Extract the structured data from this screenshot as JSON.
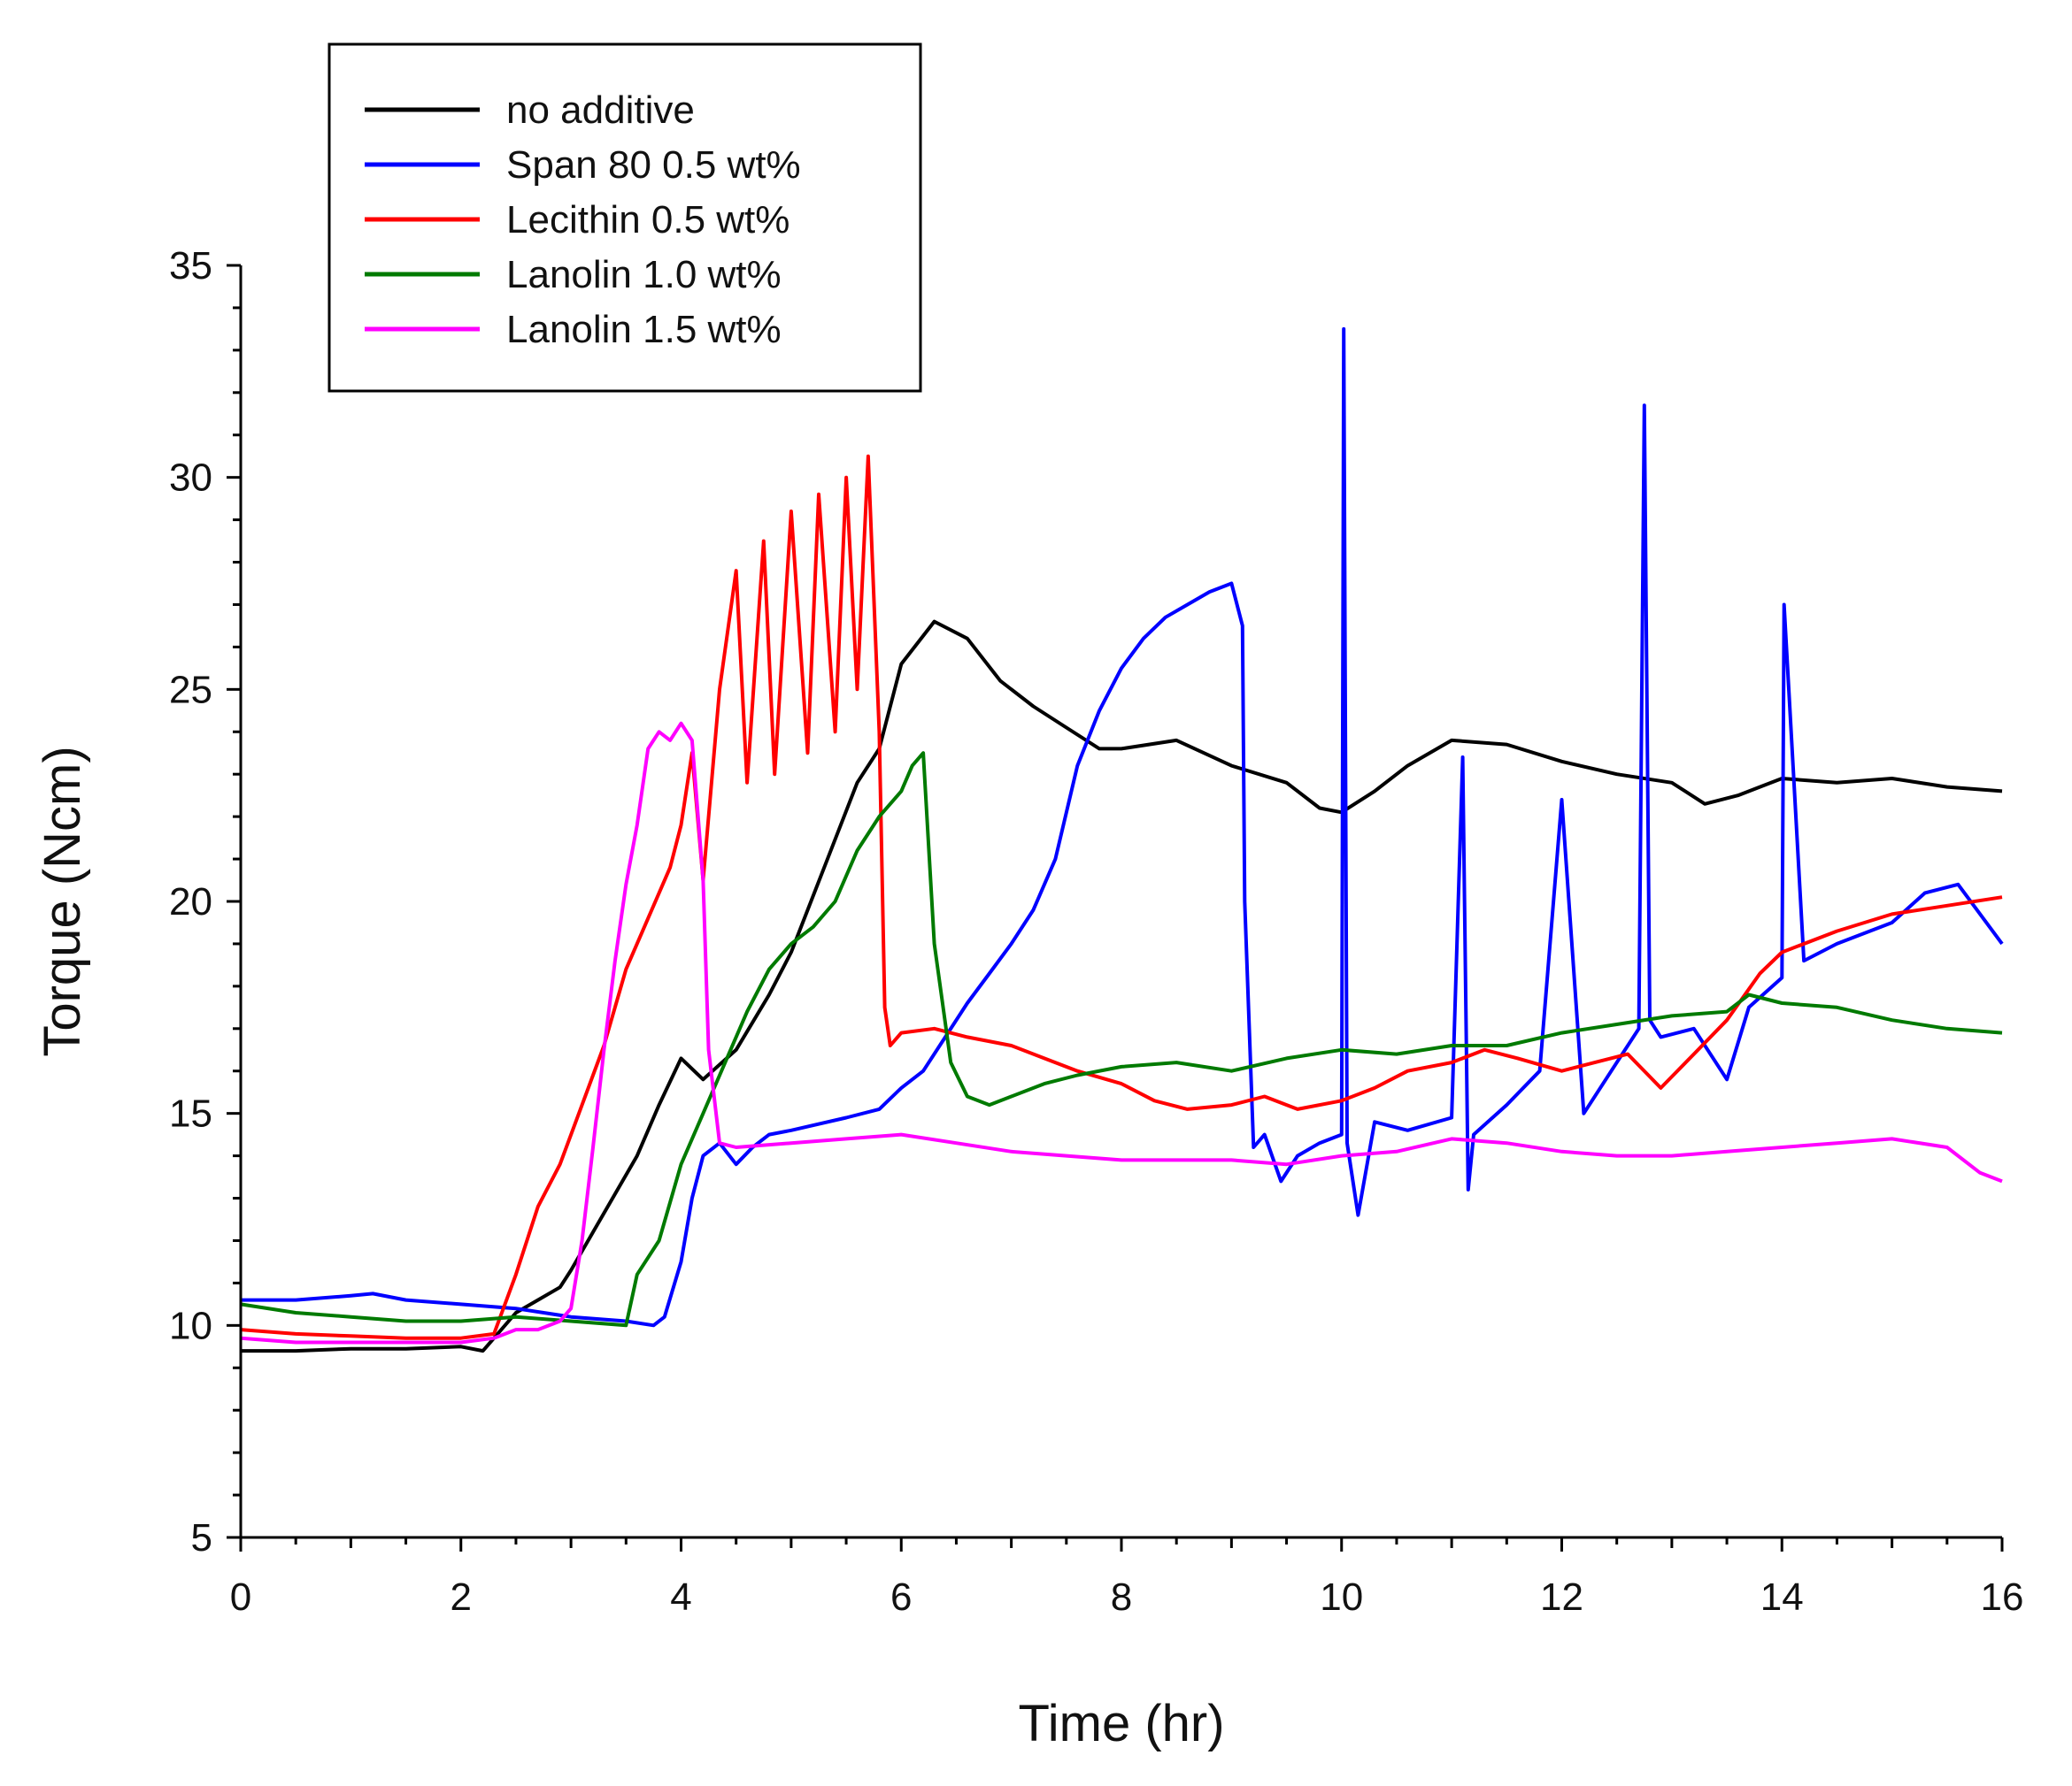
{
  "chart_data": {
    "type": "line",
    "title": "",
    "xlabel": "Time (hr)",
    "ylabel": "Torque (Ncm)",
    "xlim": [
      0,
      16
    ],
    "ylim": [
      5,
      35
    ],
    "x_ticks": [
      0,
      2,
      4,
      6,
      8,
      10,
      12,
      14,
      16
    ],
    "y_ticks": [
      5,
      10,
      15,
      20,
      25,
      30,
      35
    ],
    "x_tick_labels": [
      "0",
      "2",
      "4",
      "6",
      "8",
      "10",
      "12",
      "14",
      "16"
    ],
    "y_tick_labels": [
      "5",
      "10",
      "15",
      "20",
      "25",
      "30",
      "35"
    ],
    "grid": false,
    "legend_position": "top-left",
    "series": [
      {
        "name": "no additive",
        "color": "#000000",
        "x": [
          0,
          0.5,
          1,
          1.5,
          2,
          2.2,
          2.3,
          2.5,
          2.7,
          2.9,
          3.0,
          3.2,
          3.4,
          3.6,
          3.8,
          4.0,
          4.2,
          4.5,
          4.8,
          5.0,
          5.3,
          5.6,
          5.8,
          6.0,
          6.3,
          6.6,
          6.9,
          7.2,
          7.5,
          7.8,
          8.0,
          8.5,
          9.0,
          9.5,
          9.8,
          10.0,
          10.3,
          10.6,
          11.0,
          11.5,
          12.0,
          12.5,
          13.0,
          13.3,
          13.6,
          14.0,
          14.5,
          15.0,
          15.5,
          16.0
        ],
        "y": [
          9.4,
          9.4,
          9.45,
          9.45,
          9.5,
          9.4,
          9.7,
          10.3,
          10.6,
          10.9,
          11.3,
          12.2,
          13.1,
          14.0,
          15.2,
          16.3,
          15.8,
          16.5,
          17.8,
          18.8,
          20.8,
          22.8,
          23.6,
          25.6,
          26.6,
          26.2,
          25.2,
          24.6,
          24.1,
          23.6,
          23.6,
          23.8,
          23.2,
          22.8,
          22.2,
          22.1,
          22.6,
          23.2,
          23.8,
          23.7,
          23.3,
          23.0,
          22.8,
          22.3,
          22.5,
          22.9,
          22.8,
          22.9,
          22.7,
          22.6
        ]
      },
      {
        "name": "Span 80 0.5 wt%",
        "color": "#0000ff",
        "x": [
          0,
          0.5,
          1,
          1.2,
          1.5,
          2,
          2.5,
          3,
          3.5,
          3.75,
          3.85,
          4.0,
          4.1,
          4.2,
          4.35,
          4.5,
          4.65,
          4.8,
          5.0,
          5.5,
          5.8,
          6.0,
          6.2,
          6.4,
          6.6,
          6.8,
          7.0,
          7.2,
          7.4,
          7.6,
          7.8,
          8.0,
          8.2,
          8.4,
          8.6,
          8.8,
          9.0,
          9.1,
          9.12,
          9.2,
          9.3,
          9.45,
          9.6,
          9.8,
          10.0,
          10.02,
          10.05,
          10.15,
          10.3,
          10.6,
          11.0,
          11.1,
          11.15,
          11.2,
          11.5,
          11.8,
          12.0,
          12.2,
          12.5,
          12.7,
          12.75,
          12.8,
          12.9,
          13.2,
          13.5,
          13.7,
          14.0,
          14.02,
          14.2,
          14.5,
          15.0,
          15.3,
          15.6,
          16.0
        ],
        "y": [
          10.6,
          10.6,
          10.7,
          10.75,
          10.6,
          10.5,
          10.4,
          10.2,
          10.1,
          10.0,
          10.2,
          11.5,
          13.0,
          14.0,
          14.3,
          13.8,
          14.2,
          14.5,
          14.6,
          14.9,
          15.1,
          15.6,
          16.0,
          16.8,
          17.6,
          18.3,
          19.0,
          19.8,
          21.0,
          23.2,
          24.5,
          25.5,
          26.2,
          26.7,
          27.0,
          27.3,
          27.5,
          26.5,
          20.0,
          14.2,
          14.5,
          13.4,
          14.0,
          14.3,
          14.5,
          33.5,
          14.3,
          12.6,
          14.8,
          14.6,
          14.9,
          23.4,
          13.2,
          14.5,
          15.2,
          16.0,
          22.4,
          15.0,
          16.2,
          17.0,
          31.7,
          17.2,
          16.8,
          17.0,
          15.8,
          17.5,
          18.2,
          27.0,
          18.6,
          19.0,
          19.5,
          20.2,
          20.4,
          19.0
        ]
      },
      {
        "name": "Lecithin 0.5 wt%",
        "color": "#ff0000",
        "x": [
          0,
          0.5,
          1,
          1.5,
          2,
          2.3,
          2.5,
          2.7,
          2.9,
          3.1,
          3.3,
          3.5,
          3.7,
          3.9,
          4.0,
          4.1,
          4.2,
          4.35,
          4.5,
          4.6,
          4.75,
          4.85,
          5.0,
          5.15,
          5.25,
          5.4,
          5.5,
          5.6,
          5.7,
          5.8,
          5.85,
          5.9,
          6.0,
          6.3,
          6.6,
          7.0,
          7.3,
          7.6,
          8.0,
          8.3,
          8.6,
          9.0,
          9.3,
          9.6,
          10.0,
          10.3,
          10.6,
          11.0,
          11.3,
          11.6,
          12.0,
          12.3,
          12.6,
          12.9,
          13.2,
          13.5,
          13.8,
          14.0,
          14.5,
          15.0,
          15.5,
          16.0
        ],
        "y": [
          9.9,
          9.8,
          9.75,
          9.7,
          9.7,
          9.8,
          11.2,
          12.8,
          13.8,
          15.2,
          16.6,
          18.4,
          19.6,
          20.8,
          21.8,
          23.5,
          20.5,
          25.0,
          27.8,
          22.8,
          28.5,
          23.0,
          29.2,
          23.5,
          29.6,
          24.0,
          30.0,
          25.0,
          30.5,
          24.0,
          17.5,
          16.6,
          16.9,
          17.0,
          16.8,
          16.6,
          16.3,
          16.0,
          15.7,
          15.3,
          15.1,
          15.2,
          15.4,
          15.1,
          15.3,
          15.6,
          16.0,
          16.2,
          16.5,
          16.3,
          16.0,
          16.2,
          16.4,
          15.6,
          16.4,
          17.2,
          18.3,
          18.8,
          19.3,
          19.7,
          19.9,
          20.1
        ]
      },
      {
        "name": "Lanolin 1.0 wt%",
        "color": "#007a00",
        "x": [
          0,
          0.5,
          1,
          1.5,
          2,
          2.5,
          3,
          3.5,
          3.6,
          3.8,
          4.0,
          4.2,
          4.4,
          4.6,
          4.8,
          5.0,
          5.2,
          5.4,
          5.6,
          5.8,
          6.0,
          6.1,
          6.2,
          6.3,
          6.45,
          6.6,
          6.8,
          7.0,
          7.3,
          7.6,
          8.0,
          8.5,
          9.0,
          9.5,
          10.0,
          10.5,
          11.0,
          11.5,
          12.0,
          12.5,
          13.0,
          13.5,
          13.7,
          14.0,
          14.5,
          15.0,
          15.5,
          16.0
        ],
        "y": [
          10.5,
          10.3,
          10.2,
          10.1,
          10.1,
          10.2,
          10.1,
          10.0,
          11.2,
          12.0,
          13.8,
          15.0,
          16.2,
          17.4,
          18.4,
          19.0,
          19.4,
          20.0,
          21.2,
          22.0,
          22.6,
          23.2,
          23.5,
          19.0,
          16.2,
          15.4,
          15.2,
          15.4,
          15.7,
          15.9,
          16.1,
          16.2,
          16.0,
          16.3,
          16.5,
          16.4,
          16.6,
          16.6,
          16.9,
          17.1,
          17.3,
          17.4,
          17.8,
          17.6,
          17.5,
          17.2,
          17.0,
          16.9
        ]
      },
      {
        "name": "Lanolin 1.5 wt%",
        "color": "#ff00ff",
        "x": [
          0,
          0.5,
          1,
          1.5,
          2,
          2.3,
          2.5,
          2.7,
          2.9,
          3.0,
          3.1,
          3.2,
          3.3,
          3.4,
          3.5,
          3.6,
          3.7,
          3.8,
          3.9,
          4.0,
          4.1,
          4.2,
          4.25,
          4.35,
          4.5,
          5.0,
          5.5,
          6.0,
          6.5,
          7.0,
          7.5,
          8.0,
          8.5,
          9.0,
          9.5,
          10.0,
          10.5,
          11.0,
          11.5,
          12.0,
          12.5,
          13.0,
          13.5,
          14.0,
          14.5,
          15.0,
          15.5,
          15.8,
          16.0
        ],
        "y": [
          9.7,
          9.6,
          9.6,
          9.6,
          9.6,
          9.7,
          9.9,
          9.9,
          10.1,
          10.4,
          12.0,
          14.2,
          16.5,
          18.6,
          20.4,
          21.8,
          23.6,
          24.0,
          23.8,
          24.2,
          23.8,
          20.5,
          16.5,
          14.3,
          14.2,
          14.3,
          14.4,
          14.5,
          14.3,
          14.1,
          14.0,
          13.9,
          13.9,
          13.9,
          13.8,
          14.0,
          14.1,
          14.4,
          14.3,
          14.1,
          14.0,
          14.0,
          14.1,
          14.2,
          14.3,
          14.4,
          14.2,
          13.6,
          13.4
        ]
      }
    ]
  }
}
